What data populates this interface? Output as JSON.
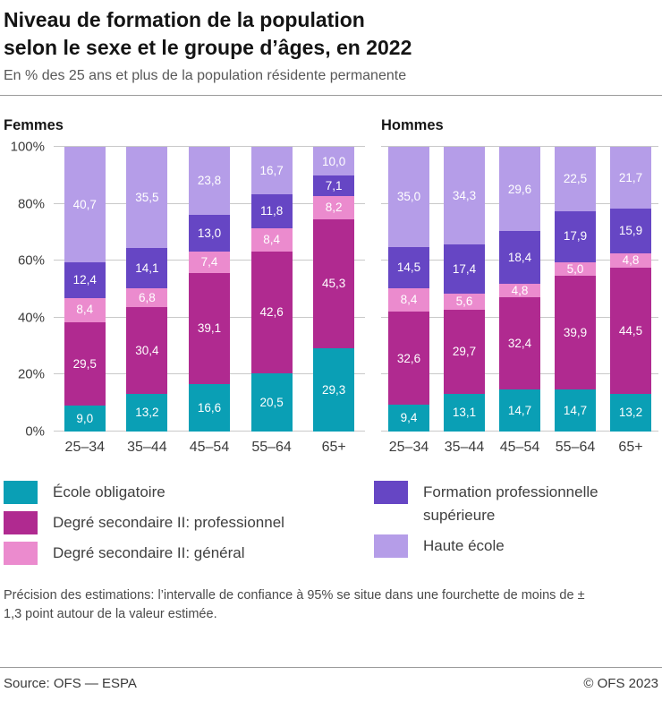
{
  "header": {
    "title_line1": "Niveau de formation de la population",
    "title_line2": "selon le sexe et le groupe d’âges, en 2022",
    "subtitle": "En % des 25 ans et plus de la population résidente permanente"
  },
  "chart_data": {
    "type": "bar",
    "stacked": true,
    "value_unit": "%",
    "ylim": [
      0,
      100
    ],
    "grid": true,
    "legend_position": "bottom",
    "categories": [
      "25–34",
      "35–44",
      "45–54",
      "55–64",
      "65+"
    ],
    "y_ticks": [
      {
        "label": "0%",
        "value": 0
      },
      {
        "label": "20%",
        "value": 20
      },
      {
        "label": "40%",
        "value": 40
      },
      {
        "label": "60%",
        "value": 60
      },
      {
        "label": "80%",
        "value": 80
      },
      {
        "label": "100%",
        "value": 100
      }
    ],
    "series_names": [
      "École obligatoire",
      "Degré secondaire II: professionnel",
      "Degré secondaire II: général",
      "Formation professionnelle supérieure",
      "Haute école"
    ],
    "series_colors": [
      "#0a9fb5",
      "#b02a90",
      "#eb8bce",
      "#6646c4",
      "#b59de8"
    ],
    "panels": [
      {
        "label": "Femmes",
        "series": [
          {
            "name": "École obligatoire",
            "values": [
              9.0,
              13.2,
              16.6,
              20.5,
              29.3
            ]
          },
          {
            "name": "Degré secondaire II: professionnel",
            "values": [
              29.5,
              30.4,
              39.1,
              42.6,
              45.3
            ]
          },
          {
            "name": "Degré secondaire II: général",
            "values": [
              8.4,
              6.8,
              7.4,
              8.4,
              8.2
            ]
          },
          {
            "name": "Formation professionnelle supérieure",
            "values": [
              12.4,
              14.1,
              13.0,
              11.8,
              7.1
            ]
          },
          {
            "name": "Haute école",
            "values": [
              40.7,
              35.5,
              23.8,
              16.7,
              10.0
            ]
          }
        ]
      },
      {
        "label": "Hommes",
        "series": [
          {
            "name": "École obligatoire",
            "values": [
              9.4,
              13.1,
              14.7,
              14.7,
              13.2
            ]
          },
          {
            "name": "Degré secondaire II: professionnel",
            "values": [
              32.6,
              29.7,
              32.4,
              39.9,
              44.5
            ]
          },
          {
            "name": "Degré secondaire II: général",
            "values": [
              8.4,
              5.6,
              4.8,
              5.0,
              4.8
            ]
          },
          {
            "name": "Formation professionnelle supérieure",
            "values": [
              14.5,
              17.4,
              18.4,
              17.9,
              15.9
            ]
          },
          {
            "name": "Haute école",
            "values": [
              35.0,
              34.3,
              29.6,
              22.5,
              21.7
            ]
          }
        ]
      }
    ]
  },
  "legend": {
    "columns": [
      {
        "items": [
          {
            "label": "École obligatoire",
            "color": "#0a9fb5"
          },
          {
            "label": "Degré secondaire II: professionnel",
            "color": "#b02a90"
          },
          {
            "label": "Degré secondaire II: général",
            "color": "#eb8bce"
          }
        ]
      },
      {
        "items": [
          {
            "label": "Formation professionnelle supérieure",
            "color": "#6646c4"
          },
          {
            "label": "Haute école",
            "color": "#b59de8"
          }
        ]
      }
    ]
  },
  "note": "Précision des estimations: l’intervalle de confiance à 95% se situe dans une fourchette de moins de ± 1,3 point autour de la valeur estimée.",
  "footer": {
    "source": "Source: OFS — ESPA",
    "copyright": "© OFS 2023"
  }
}
